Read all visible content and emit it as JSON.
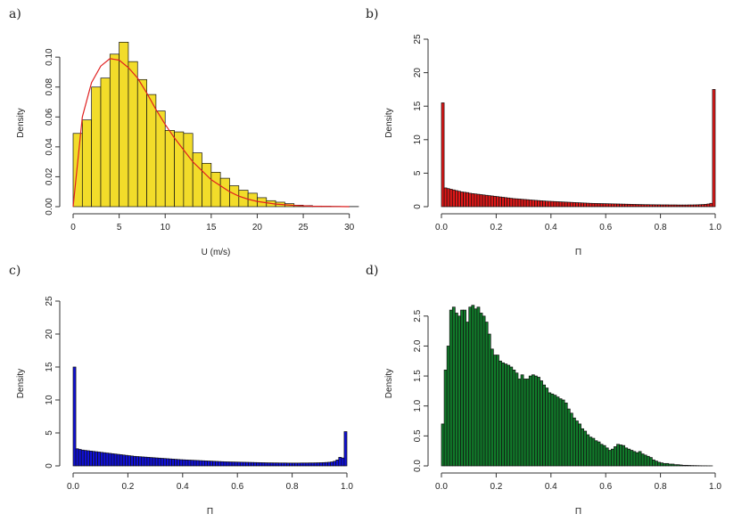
{
  "chart_data": [
    {
      "panel_label": "a)",
      "type": "bar",
      "bar_color": "#f2dc2a",
      "x_tick_labels": [
        "0",
        "5",
        "10",
        "15",
        "20",
        "25",
        "30"
      ],
      "y_tick_labels": [
        "0.00",
        "0.02",
        "0.04",
        "0.06",
        "0.08",
        "0.10"
      ],
      "xlabel": "U (m/s)",
      "ylabel": "Density",
      "xlim": [
        0,
        31
      ],
      "ylim": [
        0,
        0.112
      ],
      "bin_width": 1,
      "bin_start": 0,
      "values": [
        0.049,
        0.058,
        0.08,
        0.086,
        0.102,
        0.11,
        0.097,
        0.085,
        0.075,
        0.064,
        0.051,
        0.05,
        0.049,
        0.036,
        0.029,
        0.023,
        0.019,
        0.014,
        0.011,
        0.009,
        0.006,
        0.004,
        0.003,
        0.002,
        0.001,
        0.0007,
        0.0004,
        0.0003,
        0.0002,
        0.0001,
        0.0001
      ],
      "curve": {
        "color": "#e02020",
        "x": [
          0,
          1,
          2,
          3,
          4,
          5,
          6,
          7,
          8,
          9,
          10,
          11,
          12,
          13,
          14,
          15,
          16,
          17,
          18,
          19,
          20,
          22,
          24,
          26,
          28,
          30
        ],
        "y": [
          0.0,
          0.06,
          0.083,
          0.094,
          0.099,
          0.098,
          0.093,
          0.086,
          0.076,
          0.065,
          0.055,
          0.046,
          0.038,
          0.03,
          0.024,
          0.018,
          0.014,
          0.01,
          0.007,
          0.005,
          0.0035,
          0.0017,
          0.0008,
          0.0003,
          0.0001,
          0.0
        ]
      }
    },
    {
      "panel_label": "b)",
      "type": "bar",
      "bar_color": "#e01818",
      "x_tick_labels": [
        "0.0",
        "0.2",
        "0.4",
        "0.6",
        "0.8",
        "1.0"
      ],
      "y_tick_labels": [
        "0",
        "5",
        "10",
        "15",
        "20",
        "25"
      ],
      "xlabel": "Π",
      "ylabel": "Density",
      "xlim": [
        0,
        1
      ],
      "ylim": [
        0,
        25
      ],
      "bin_width": 0.01,
      "bin_start": 0,
      "values": [
        15.5,
        2.8,
        2.7,
        2.6,
        2.5,
        2.4,
        2.3,
        2.2,
        2.15,
        2.1,
        2.0,
        1.95,
        1.9,
        1.85,
        1.8,
        1.75,
        1.7,
        1.65,
        1.6,
        1.55,
        1.5,
        1.45,
        1.4,
        1.35,
        1.3,
        1.25,
        1.2,
        1.17,
        1.14,
        1.1,
        1.07,
        1.04,
        1.0,
        0.97,
        0.94,
        0.91,
        0.88,
        0.85,
        0.82,
        0.8,
        0.78,
        0.76,
        0.74,
        0.72,
        0.7,
        0.68,
        0.66,
        0.64,
        0.62,
        0.6,
        0.58,
        0.56,
        0.54,
        0.52,
        0.5,
        0.49,
        0.48,
        0.47,
        0.46,
        0.45,
        0.44,
        0.43,
        0.42,
        0.41,
        0.4,
        0.39,
        0.38,
        0.37,
        0.36,
        0.35,
        0.34,
        0.33,
        0.32,
        0.31,
        0.3,
        0.3,
        0.29,
        0.29,
        0.28,
        0.28,
        0.27,
        0.27,
        0.27,
        0.26,
        0.26,
        0.26,
        0.25,
        0.25,
        0.25,
        0.25,
        0.26,
        0.26,
        0.27,
        0.28,
        0.3,
        0.32,
        0.35,
        0.4,
        0.5,
        17.5
      ]
    },
    {
      "panel_label": "c)",
      "type": "bar",
      "bar_color": "#1010d8",
      "x_tick_labels": [
        "0.0",
        "0.2",
        "0.4",
        "0.6",
        "0.8",
        "1.0"
      ],
      "y_tick_labels": [
        "0",
        "5",
        "10",
        "15",
        "20",
        "25"
      ],
      "xlabel": "Π",
      "ylabel": "Density",
      "xlim": [
        0,
        1
      ],
      "ylim": [
        0,
        25
      ],
      "bin_width": 0.01,
      "bin_start": 0,
      "values": [
        15.0,
        2.6,
        2.5,
        2.4,
        2.35,
        2.3,
        2.25,
        2.2,
        2.15,
        2.1,
        2.05,
        2.0,
        1.95,
        1.9,
        1.85,
        1.8,
        1.75,
        1.7,
        1.65,
        1.6,
        1.55,
        1.5,
        1.45,
        1.42,
        1.39,
        1.36,
        1.33,
        1.3,
        1.27,
        1.24,
        1.21,
        1.18,
        1.15,
        1.12,
        1.09,
        1.06,
        1.03,
        1.0,
        0.97,
        0.94,
        0.92,
        0.9,
        0.88,
        0.86,
        0.84,
        0.82,
        0.8,
        0.78,
        0.76,
        0.74,
        0.72,
        0.7,
        0.68,
        0.66,
        0.64,
        0.62,
        0.61,
        0.6,
        0.59,
        0.58,
        0.57,
        0.56,
        0.55,
        0.54,
        0.53,
        0.52,
        0.51,
        0.5,
        0.49,
        0.48,
        0.47,
        0.46,
        0.46,
        0.45,
        0.45,
        0.44,
        0.44,
        0.44,
        0.43,
        0.43,
        0.43,
        0.43,
        0.43,
        0.44,
        0.44,
        0.44,
        0.45,
        0.45,
        0.46,
        0.47,
        0.48,
        0.5,
        0.52,
        0.55,
        0.6,
        0.7,
        0.9,
        1.3,
        1.2,
        5.2
      ]
    },
    {
      "panel_label": "d)",
      "type": "bar",
      "bar_color": "#117a2a",
      "x_tick_labels": [
        "0.0",
        "0.2",
        "0.4",
        "0.6",
        "0.8",
        "1.0"
      ],
      "y_tick_labels": [
        "0.0",
        "0.5",
        "1.0",
        "1.5",
        "2.0",
        "2.5"
      ],
      "xlabel": "Π",
      "ylabel": "Density",
      "xlim": [
        0,
        1
      ],
      "ylim": [
        0,
        2.75
      ],
      "bin_width": 0.01,
      "bin_start": 0,
      "values": [
        0.7,
        1.6,
        2.0,
        2.6,
        2.65,
        2.55,
        2.5,
        2.6,
        2.6,
        2.4,
        2.65,
        2.68,
        2.62,
        2.65,
        2.55,
        2.5,
        2.4,
        2.2,
        1.95,
        1.85,
        1.85,
        1.75,
        1.72,
        1.7,
        1.68,
        1.65,
        1.6,
        1.55,
        1.45,
        1.52,
        1.45,
        1.45,
        1.5,
        1.52,
        1.5,
        1.48,
        1.42,
        1.35,
        1.3,
        1.22,
        1.2,
        1.18,
        1.15,
        1.12,
        1.1,
        1.05,
        0.95,
        0.88,
        0.8,
        0.75,
        0.7,
        0.62,
        0.58,
        0.52,
        0.48,
        0.46,
        0.42,
        0.4,
        0.36,
        0.34,
        0.3,
        0.26,
        0.28,
        0.32,
        0.36,
        0.35,
        0.34,
        0.3,
        0.28,
        0.26,
        0.24,
        0.22,
        0.24,
        0.2,
        0.18,
        0.16,
        0.14,
        0.1,
        0.08,
        0.06,
        0.05,
        0.04,
        0.04,
        0.03,
        0.03,
        0.02,
        0.02,
        0.015,
        0.01,
        0.01,
        0.008,
        0.006,
        0.005,
        0.004,
        0.003,
        0.002,
        0.002,
        0.001,
        0.001,
        0.0
      ]
    }
  ]
}
